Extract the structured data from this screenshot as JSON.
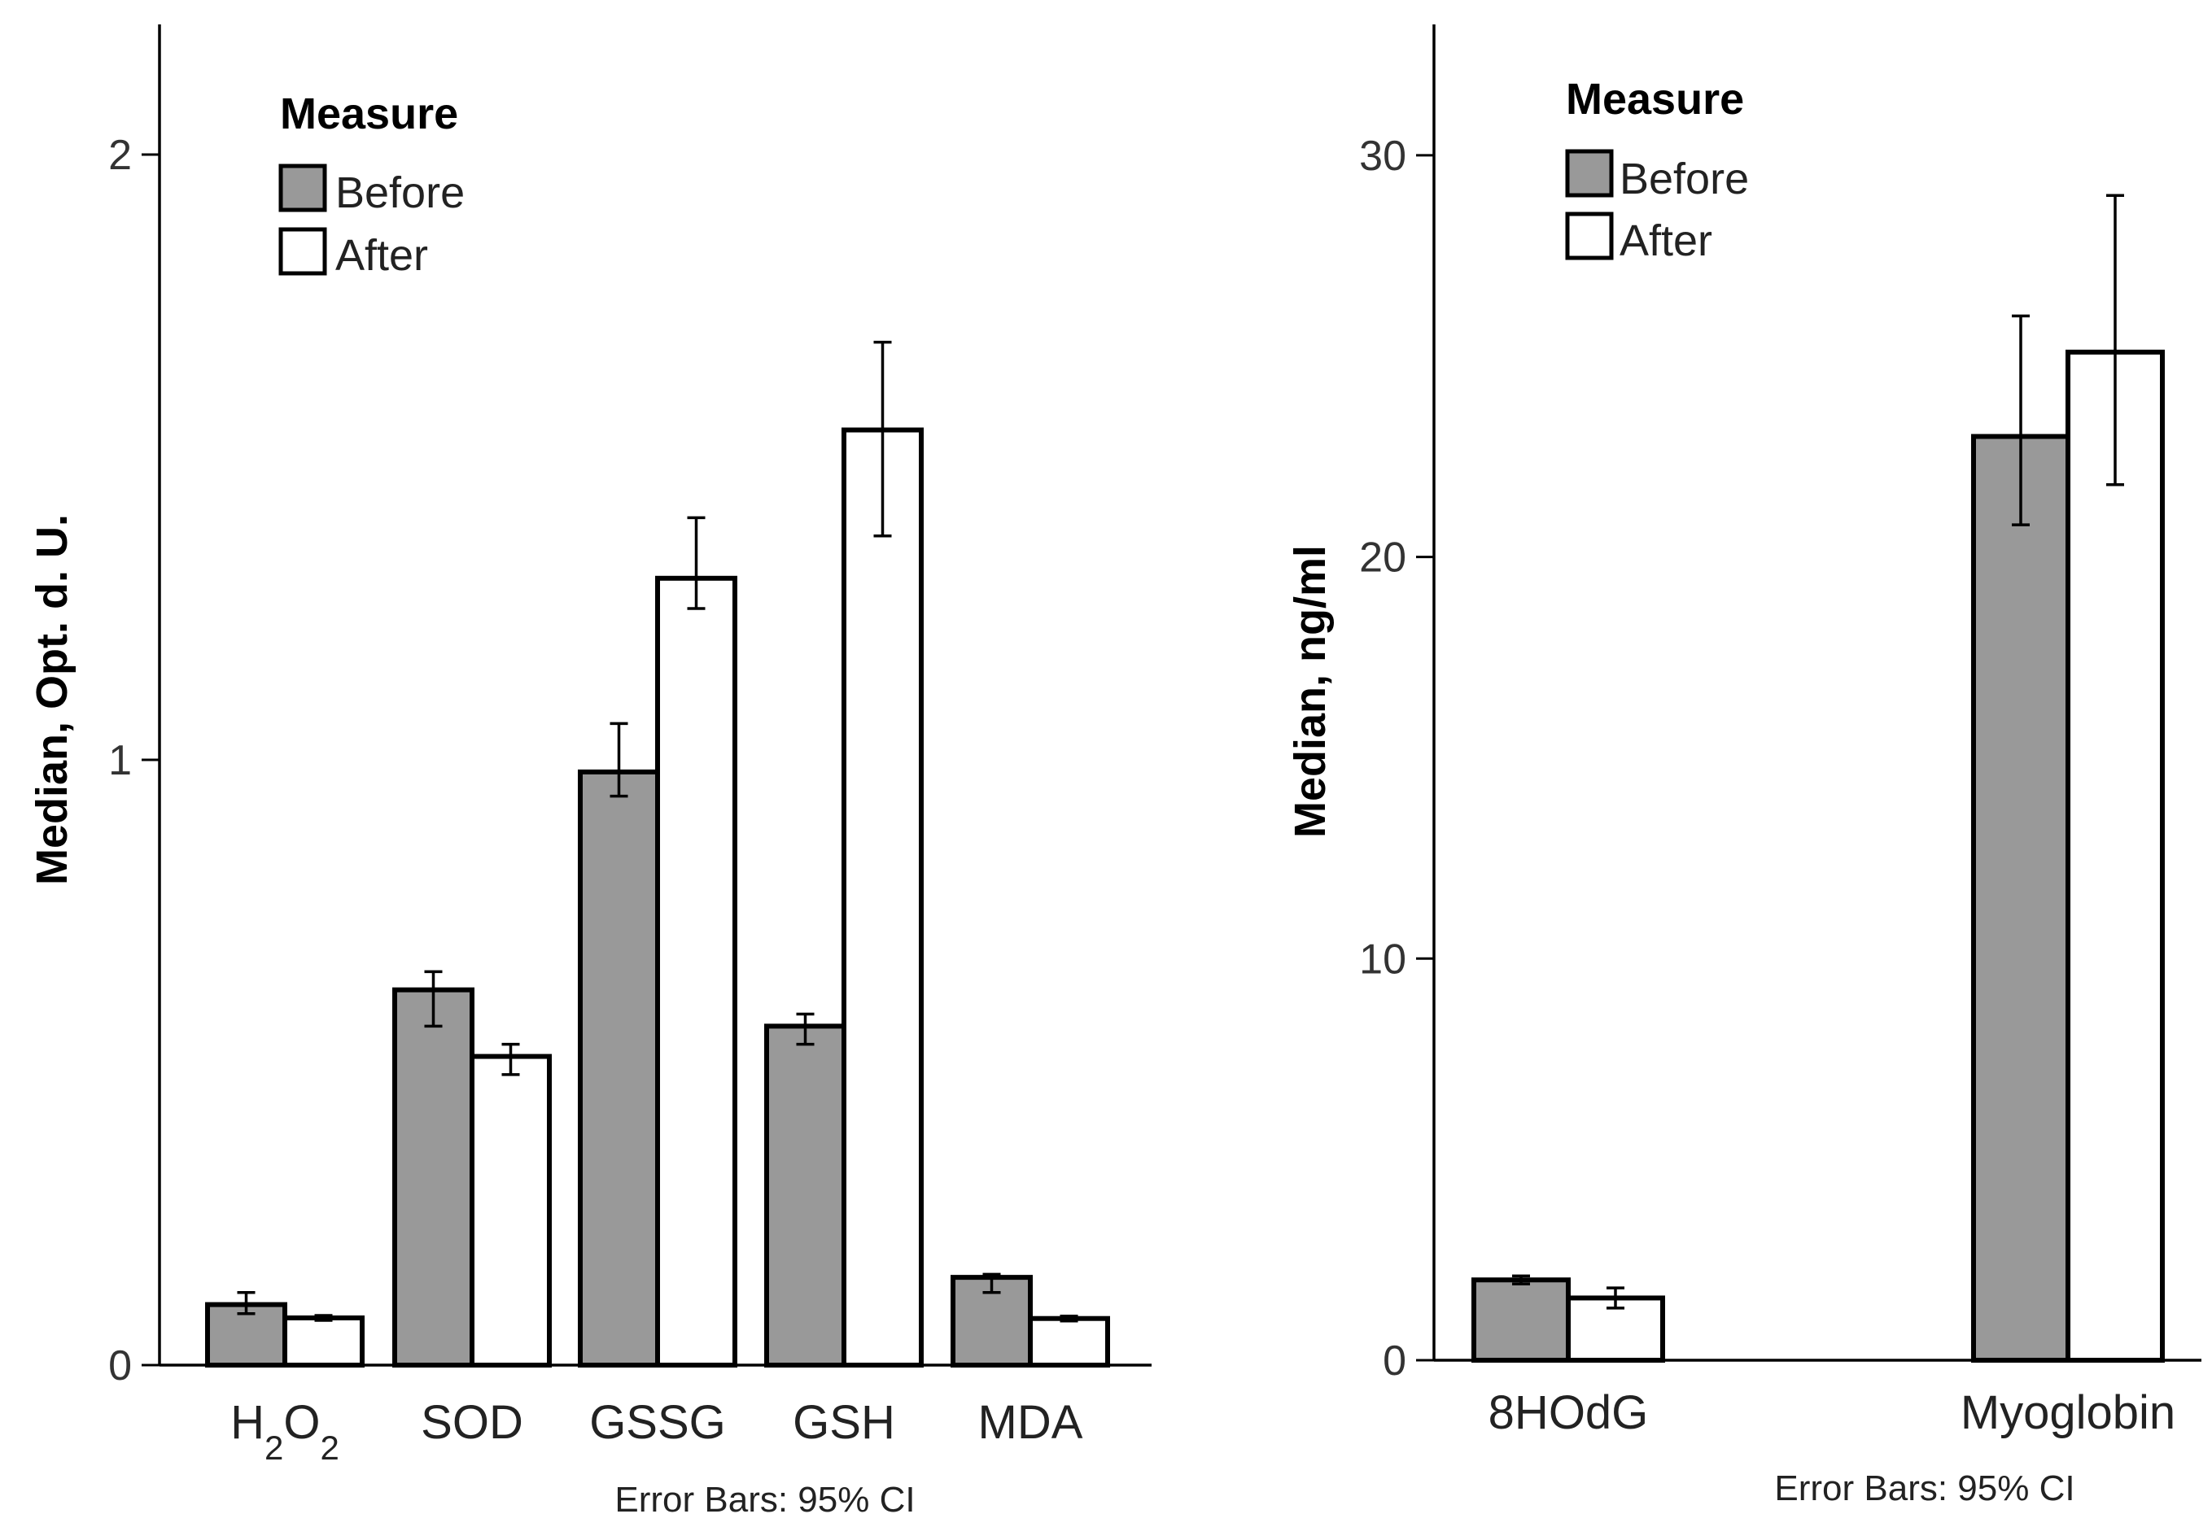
{
  "colors": {
    "before": "#999999",
    "after": "#ffffff"
  },
  "chart_data": [
    {
      "type": "bar",
      "title": "",
      "xlabel": "",
      "ylabel": "Median, Opt. d. U.",
      "ylim": [
        0,
        2.2
      ],
      "yticks": [
        0,
        1,
        2
      ],
      "ytick_labels": [
        "0",
        "1",
        "2"
      ],
      "categories": [
        "H2O2",
        "SOD",
        "GSSG",
        "GSH",
        "MDA"
      ],
      "category_labels": [
        {
          "base": "H",
          "sub": "2",
          "base2": "O",
          "sub2": "2"
        },
        {
          "base": "SOD"
        },
        {
          "base": "GSSG"
        },
        {
          "base": "GSH"
        },
        {
          "base": "MDA"
        }
      ],
      "series": [
        {
          "name": "Before",
          "values": [
            0.1,
            0.62,
            0.98,
            0.56,
            0.145
          ],
          "ci_low": [
            0.085,
            0.56,
            0.94,
            0.53,
            0.12
          ],
          "ci_high": [
            0.12,
            0.65,
            1.06,
            0.58,
            0.15
          ]
        },
        {
          "name": "After",
          "values": [
            0.078,
            0.51,
            1.3,
            1.545,
            0.077
          ],
          "ci_low": [
            0.074,
            0.48,
            1.25,
            1.37,
            0.073
          ],
          "ci_high": [
            0.082,
            0.53,
            1.4,
            1.69,
            0.081
          ]
        }
      ],
      "legend": {
        "title": "Measure",
        "items": [
          "Before",
          "After"
        ],
        "placement": "top-left"
      },
      "note": "Error Bars: 95% CI"
    },
    {
      "type": "bar",
      "title": "",
      "xlabel": "",
      "ylabel": "Median, ng/ml",
      "ylim": [
        0,
        33.5
      ],
      "yticks": [
        0,
        10,
        20,
        30
      ],
      "ytick_labels": [
        "0",
        "10",
        "20",
        "30"
      ],
      "categories": [
        "8HOdG",
        "Myoglobin"
      ],
      "category_labels": [
        {
          "base": "8HOdG"
        },
        {
          "base": "Myoglobin"
        }
      ],
      "series": [
        {
          "name": "Before",
          "values": [
            2.0,
            23.0
          ],
          "ci_low": [
            1.9,
            20.8
          ],
          "ci_high": [
            2.1,
            26.0
          ]
        },
        {
          "name": "After",
          "values": [
            1.55,
            25.1
          ],
          "ci_low": [
            1.3,
            21.8
          ],
          "ci_high": [
            1.8,
            29.0
          ]
        }
      ],
      "legend": {
        "title": "Measure",
        "items": [
          "Before",
          "After"
        ],
        "placement": "top-left"
      },
      "note": "Error Bars: 95% CI"
    }
  ]
}
